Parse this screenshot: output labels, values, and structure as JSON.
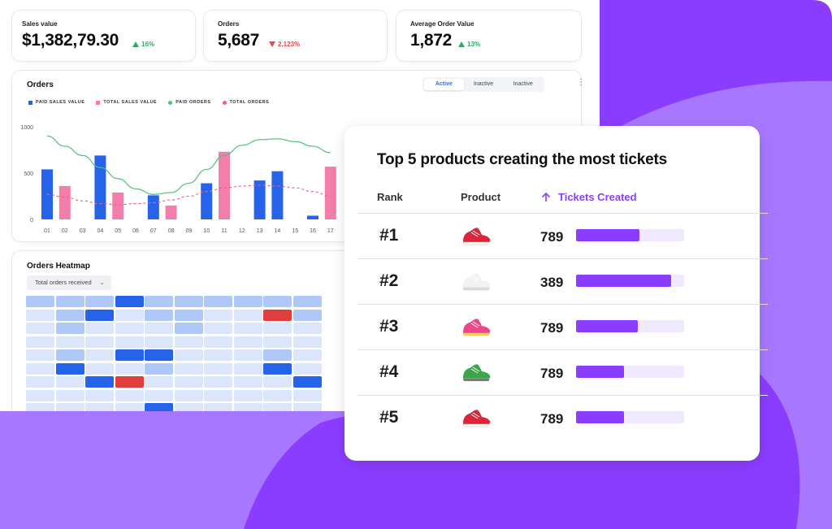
{
  "colors": {
    "purple": "#8b3dff",
    "purple_light": "#a877ff",
    "blue": "#2563eb",
    "pink": "#f47eab",
    "green": "#4cc27b",
    "red": "#e5484d"
  },
  "kpis": [
    {
      "label": "Sales value",
      "value": "$1,382,79.30",
      "delta": "16%",
      "direction": "up"
    },
    {
      "label": "Orders",
      "value": "5,687",
      "delta": "2,123%",
      "direction": "down"
    },
    {
      "label": "Average Order Value",
      "value": "1,872",
      "delta": "13%",
      "direction": "up"
    }
  ],
  "orders_card": {
    "title": "Orders",
    "tabs": [
      "Active",
      "Inactive",
      "Inactive"
    ],
    "active_tab": "Active",
    "legend": [
      "PAID SALES VALUE",
      "TOTAL SALES VALUE",
      "PAID ORDERS",
      "TOTAL ORDERS"
    ]
  },
  "chart_data": {
    "type": "bar",
    "categories": [
      "01",
      "02",
      "03",
      "04",
      "05",
      "06",
      "07",
      "08",
      "09",
      "10",
      "11",
      "12",
      "13",
      "14",
      "15",
      "16",
      "17"
    ],
    "yticks": [
      "1000",
      "500",
      "0"
    ],
    "ylim": [
      0,
      1000
    ],
    "grid": false,
    "legend_position": "top-left",
    "series": [
      {
        "name": "PAID SALES VALUE",
        "type": "bar",
        "values": [
          540,
          null,
          null,
          690,
          null,
          null,
          260,
          null,
          null,
          390,
          null,
          null,
          420,
          520,
          null,
          40,
          null
        ]
      },
      {
        "name": "TOTAL SALES VALUE",
        "type": "bar",
        "values": [
          null,
          360,
          null,
          null,
          290,
          null,
          null,
          150,
          null,
          null,
          730,
          null,
          null,
          null,
          null,
          null,
          570
        ]
      },
      {
        "name": "PAID ORDERS",
        "type": "line",
        "values": [
          900,
          790,
          690,
          560,
          440,
          330,
          270,
          290,
          390,
          540,
          690,
          800,
          860,
          870,
          840,
          790,
          720
        ]
      },
      {
        "name": "TOTAL ORDERS",
        "type": "line",
        "values": [
          270,
          240,
          200,
          170,
          160,
          170,
          180,
          210,
          250,
          300,
          340,
          360,
          370,
          360,
          340,
          300,
          250
        ]
      }
    ]
  },
  "heatmap": {
    "title": "Orders Heatmap",
    "filter": "Total orders received",
    "levels": [
      [
        1,
        1,
        1,
        3,
        1,
        1,
        1,
        1,
        1,
        1
      ],
      [
        0,
        1,
        3,
        0,
        1,
        1,
        0,
        0,
        4,
        1
      ],
      [
        0,
        1,
        0,
        0,
        0,
        1,
        0,
        0,
        0,
        0
      ],
      [
        0,
        0,
        0,
        0,
        0,
        0,
        0,
        0,
        0,
        0
      ],
      [
        0,
        1,
        0,
        3,
        3,
        0,
        0,
        0,
        1,
        0
      ],
      [
        0,
        3,
        0,
        0,
        1,
        0,
        0,
        0,
        3,
        0
      ],
      [
        0,
        0,
        3,
        4,
        0,
        0,
        0,
        0,
        0,
        3
      ],
      [
        0,
        0,
        0,
        0,
        0,
        0,
        0,
        0,
        0,
        0
      ],
      [
        0,
        0,
        0,
        0,
        3,
        0,
        0,
        0,
        0,
        0
      ]
    ]
  },
  "top5": {
    "title": "Top 5 products creating the most tickets",
    "headers": {
      "rank": "Rank",
      "product": "Product",
      "tickets": "Tickets Created"
    },
    "sort_icon": "arrow-up-icon",
    "rows": [
      {
        "rank": "#1",
        "product_icon": "red-sneaker-icon",
        "tickets": "789",
        "fill_fraction": 0.59
      },
      {
        "rank": "#2",
        "product_icon": "white-sneaker-icon",
        "tickets": "389",
        "fill_fraction": 0.88
      },
      {
        "rank": "#3",
        "product_icon": "pink-sneaker-icon",
        "tickets": "789",
        "fill_fraction": 0.57
      },
      {
        "rank": "#4",
        "product_icon": "green-sneaker-icon",
        "tickets": "789",
        "fill_fraction": 0.44
      },
      {
        "rank": "#5",
        "product_icon": "red-sneaker-icon",
        "tickets": "789",
        "fill_fraction": 0.44
      }
    ]
  }
}
